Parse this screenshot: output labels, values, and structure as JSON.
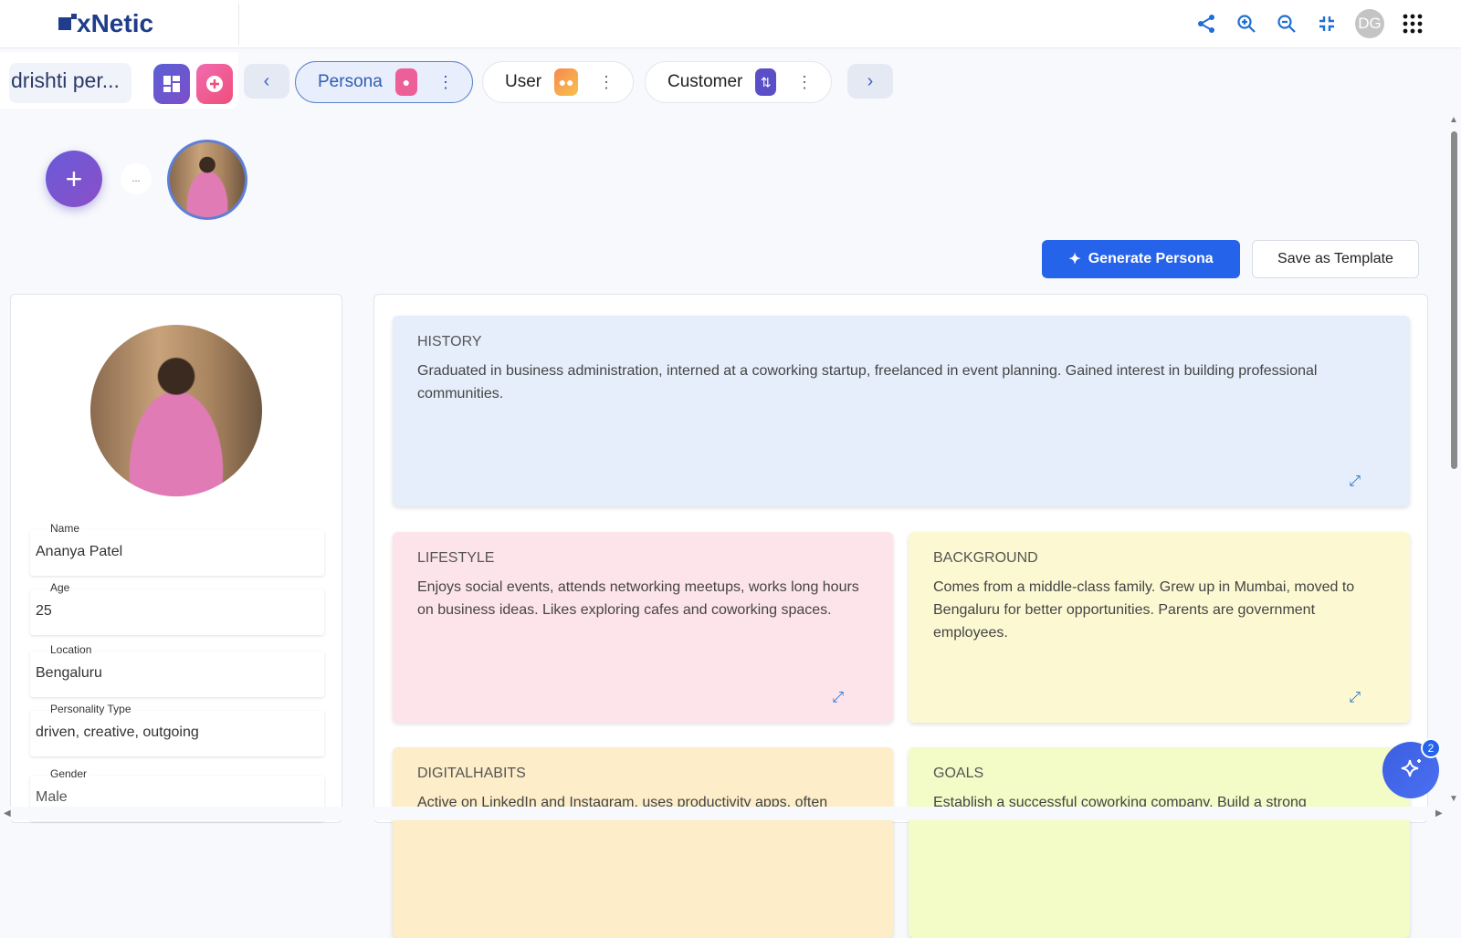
{
  "header": {
    "logo": "xNetic",
    "user_initials": "DG",
    "icons": [
      "share-icon",
      "zoom-in-icon",
      "zoom-out-icon",
      "collapse-icon",
      "apps-grid-icon"
    ]
  },
  "tabbar": {
    "project_name": "drishti per...",
    "tabs": [
      {
        "label": "Persona",
        "icon": "person-icon",
        "color": "#ec5f98",
        "active": true
      },
      {
        "label": "User",
        "icon": "users-icon",
        "color": "#f6a04d",
        "active": false
      },
      {
        "label": "Customer",
        "icon": "journey-icon",
        "color": "#5b4fc8",
        "active": false
      }
    ]
  },
  "avatars": {
    "broken_alt": "..."
  },
  "actions": {
    "generate": "Generate Persona",
    "save_template": "Save as Template"
  },
  "profile": {
    "fields": [
      {
        "label": "Name",
        "value": "Ananya Patel"
      },
      {
        "label": "Age",
        "value": "25"
      },
      {
        "label": "Location",
        "value": "Bengaluru"
      },
      {
        "label": "Personality Type",
        "value": "driven, creative, outgoing"
      },
      {
        "label": "Gender",
        "value": "Male"
      }
    ]
  },
  "cards": [
    {
      "title": "HISTORY",
      "text": "Graduated in business administration, interned at a coworking startup, freelanced in event planning. Gained interest in building professional communities.",
      "color": "#e6eefb"
    },
    {
      "title": "LIFESTYLE",
      "text": "Enjoys social events, attends networking meetups, works long hours on business ideas. Likes exploring cafes and coworking spaces.",
      "color": "#fde4ea"
    },
    {
      "title": "BACKGROUND",
      "text": "Comes from a middle-class family. Grew up in Mumbai, moved to Bengaluru for better opportunities. Parents are government employees.",
      "color": "#fcf9d2"
    },
    {
      "title": "DIGITALHABITS",
      "text": "Active on LinkedIn and Instagram, uses productivity apps, often",
      "color": "#fdedc8"
    },
    {
      "title": "GOALS",
      "text": "Establish a successful coworking company, Build a strong",
      "color": "#f3fbc7"
    }
  ],
  "assistant": {
    "badge_count": "2"
  }
}
